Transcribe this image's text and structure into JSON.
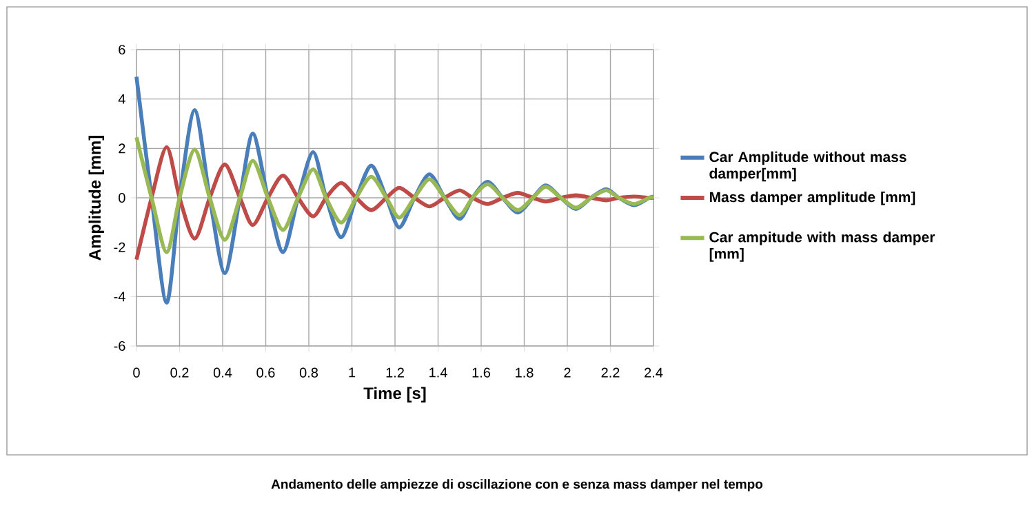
{
  "chart_data": {
    "type": "line",
    "title": "Andamento delle ampiezze di oscillazione con e senza mass damper nel tempo",
    "xlabel": "Time [s]",
    "ylabel": "Amplitude [mm]",
    "x": [
      0,
      0.07,
      0.14,
      0.2,
      0.27,
      0.34,
      0.41,
      0.48,
      0.54,
      0.61,
      0.68,
      0.75,
      0.82,
      0.88,
      0.95,
      1.02,
      1.09,
      1.16,
      1.22,
      1.29,
      1.36,
      1.43,
      1.5,
      1.56,
      1.63,
      1.7,
      1.77,
      1.84,
      1.9,
      1.97,
      2.04,
      2.11,
      2.18,
      2.24,
      2.31,
      2.38,
      2.4
    ],
    "series": [
      {
        "name": "Car Amplitude without mass damper[mm]",
        "color": "#4a7ebb",
        "values": [
          4.9,
          0,
          -4.25,
          0,
          3.55,
          0,
          -3.05,
          0,
          2.6,
          0,
          -2.2,
          0,
          1.85,
          0,
          -1.6,
          0,
          1.3,
          0,
          -1.2,
          0,
          0.95,
          0,
          -0.85,
          0,
          0.65,
          0,
          -0.6,
          0,
          0.5,
          0,
          -0.45,
          0,
          0.35,
          0,
          -0.3,
          0,
          0.05
        ]
      },
      {
        "name": "Mass damper amplitude [mm]",
        "color": "#be4b48",
        "values": [
          -2.5,
          0,
          2.05,
          0,
          -1.65,
          0,
          1.35,
          0,
          -1.1,
          0,
          0.9,
          0,
          -0.75,
          0,
          0.6,
          0,
          -0.5,
          0,
          0.4,
          0,
          -0.35,
          0,
          0.3,
          0,
          -0.25,
          0,
          0.2,
          0,
          -0.15,
          0,
          0.1,
          0,
          -0.1,
          0,
          0.05,
          0,
          0
        ]
      },
      {
        "name": "Car ampitude with mass damper [mm]",
        "color": "#98b954",
        "values": [
          2.45,
          0,
          -2.2,
          0,
          1.95,
          0,
          -1.7,
          0,
          1.5,
          0,
          -1.3,
          0,
          1.15,
          0,
          -1.0,
          0,
          0.85,
          0,
          -0.8,
          0,
          0.75,
          0,
          -0.7,
          0,
          0.55,
          0,
          -0.5,
          0,
          0.45,
          0,
          -0.4,
          0,
          0.3,
          0,
          -0.25,
          0,
          0
        ]
      }
    ],
    "xlim": [
      0,
      2.4
    ],
    "ylim": [
      -6,
      6
    ],
    "xticks": [
      0,
      0.2,
      0.4,
      0.6,
      0.8,
      1,
      1.2,
      1.4,
      1.6,
      1.8,
      2,
      2.2,
      2.4
    ],
    "yticks": [
      -6,
      -4,
      -2,
      0,
      2,
      4,
      6
    ],
    "grid": true,
    "legend": "right",
    "marker": "none",
    "line_style": "solid"
  }
}
